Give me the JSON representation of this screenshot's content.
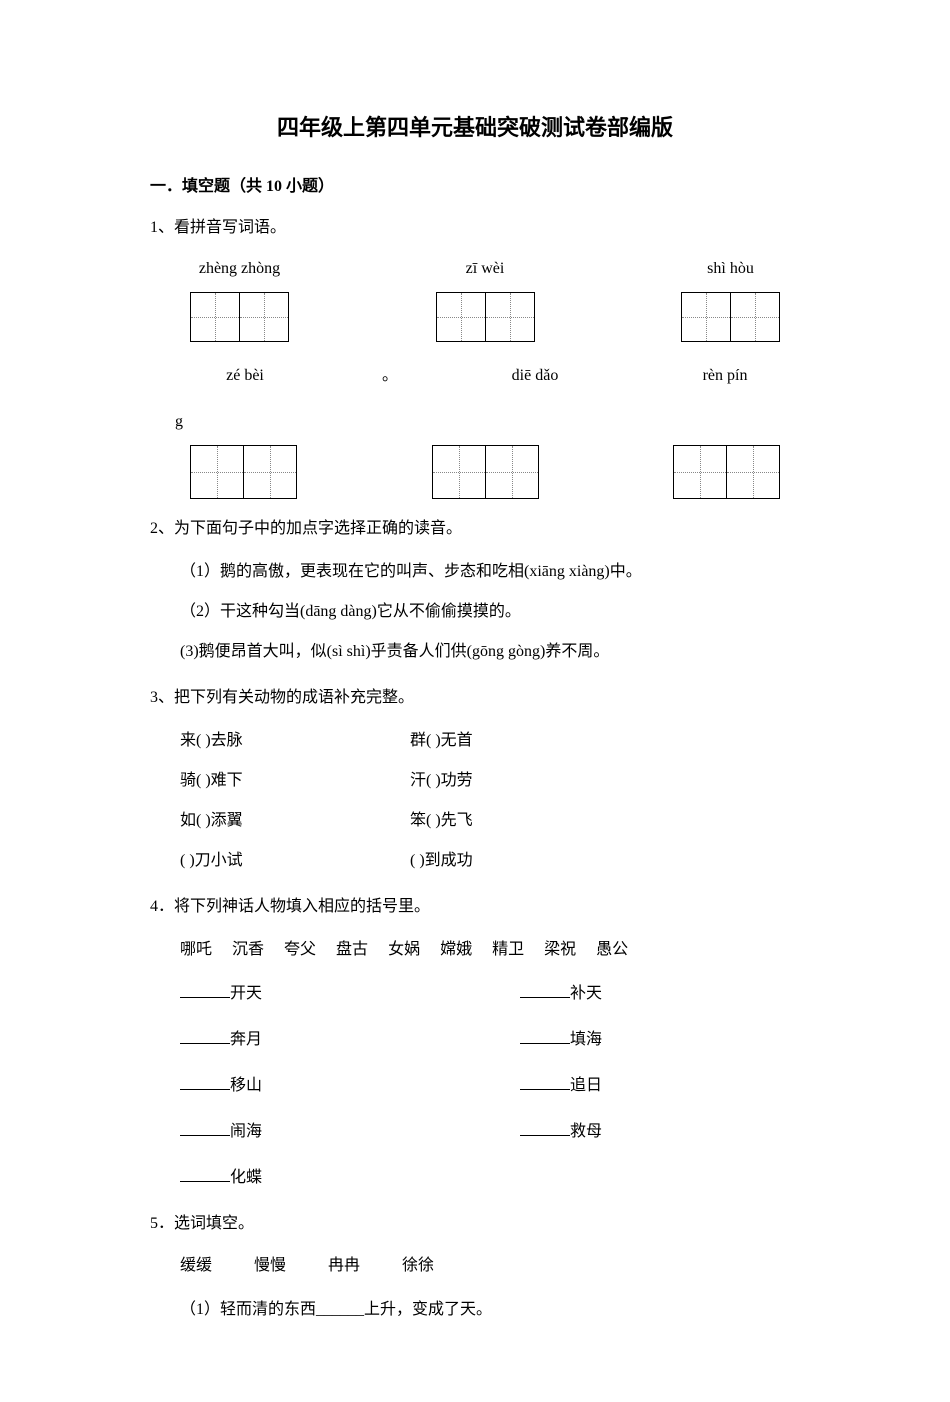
{
  "title": "四年级上第四单元基础突破测试卷部编版",
  "section": "一．填空题（共 10 小题）",
  "q1": {
    "prompt": "1、看拼音写词语。",
    "row1": [
      {
        "pinyin": "zhèng  zhòng"
      },
      {
        "pinyin": "zī      wèi"
      },
      {
        "pinyin": "shì    hòu"
      }
    ],
    "row2": [
      {
        "pinyin": "zé     bèi"
      },
      {
        "pinyin": "diē    dǎo"
      },
      {
        "pinyin": "rèn   pín"
      }
    ],
    "extra": "g",
    "dot": "。",
    "cell_size": 50,
    "cell_size_row2": 54
  },
  "q2": {
    "prompt": "2、为下面句子中的加点字选择正确的读音。",
    "items": [
      "（1）鹅的高傲，更表现在它的叫声、步态和吃相(xiāng  xiàng)中。",
      "（2）干这种勾当(dāng   dàng)它从不偷偷摸摸的。",
      "(3)鹅便昂首大叫，似(sì  shì)乎责备人们供(gōng gòng)养不周。"
    ]
  },
  "q3": {
    "prompt": "3、把下列有关动物的成语补充完整。",
    "rows": [
      {
        "l_pre": "来(",
        "l_post": ")去脉",
        "r_pre": "群(",
        "r_post": ")无首"
      },
      {
        "l_pre": "骑(",
        "l_post": ")难下",
        "r_pre": "汗(",
        "r_post": ")功劳"
      },
      {
        "l_pre": "如(",
        "l_post": ")添翼",
        "r_pre": "笨(",
        "r_post": ")先飞"
      },
      {
        "l_pre": "(",
        "l_post": ")刀小试",
        "r_pre": "(",
        "r_post": ")到成功"
      }
    ],
    "gap": "        "
  },
  "q4": {
    "prompt": "4．将下列神话人物填入相应的括号里。",
    "names": [
      "哪吒",
      "沉香",
      "夸父",
      "盘古",
      "女娲",
      "嫦娥",
      "精卫",
      "梁祝",
      "愚公"
    ],
    "rows": [
      {
        "l": "开天",
        "r": "补天"
      },
      {
        "l": "奔月",
        "r": "填海"
      },
      {
        "l": "移山",
        "r": "追日"
      },
      {
        "l": "闹海",
        "r": "救母"
      },
      {
        "l": "化蝶",
        "r": ""
      }
    ]
  },
  "q5": {
    "prompt": "5．选词填空。",
    "choices": [
      "缓缓",
      "慢慢",
      "冉冉",
      "徐徐"
    ],
    "items": [
      "（1）轻而清的东西______上升，变成了天。"
    ]
  },
  "colors": {
    "text": "#000000",
    "bg": "#ffffff",
    "dotted": "#888888"
  }
}
